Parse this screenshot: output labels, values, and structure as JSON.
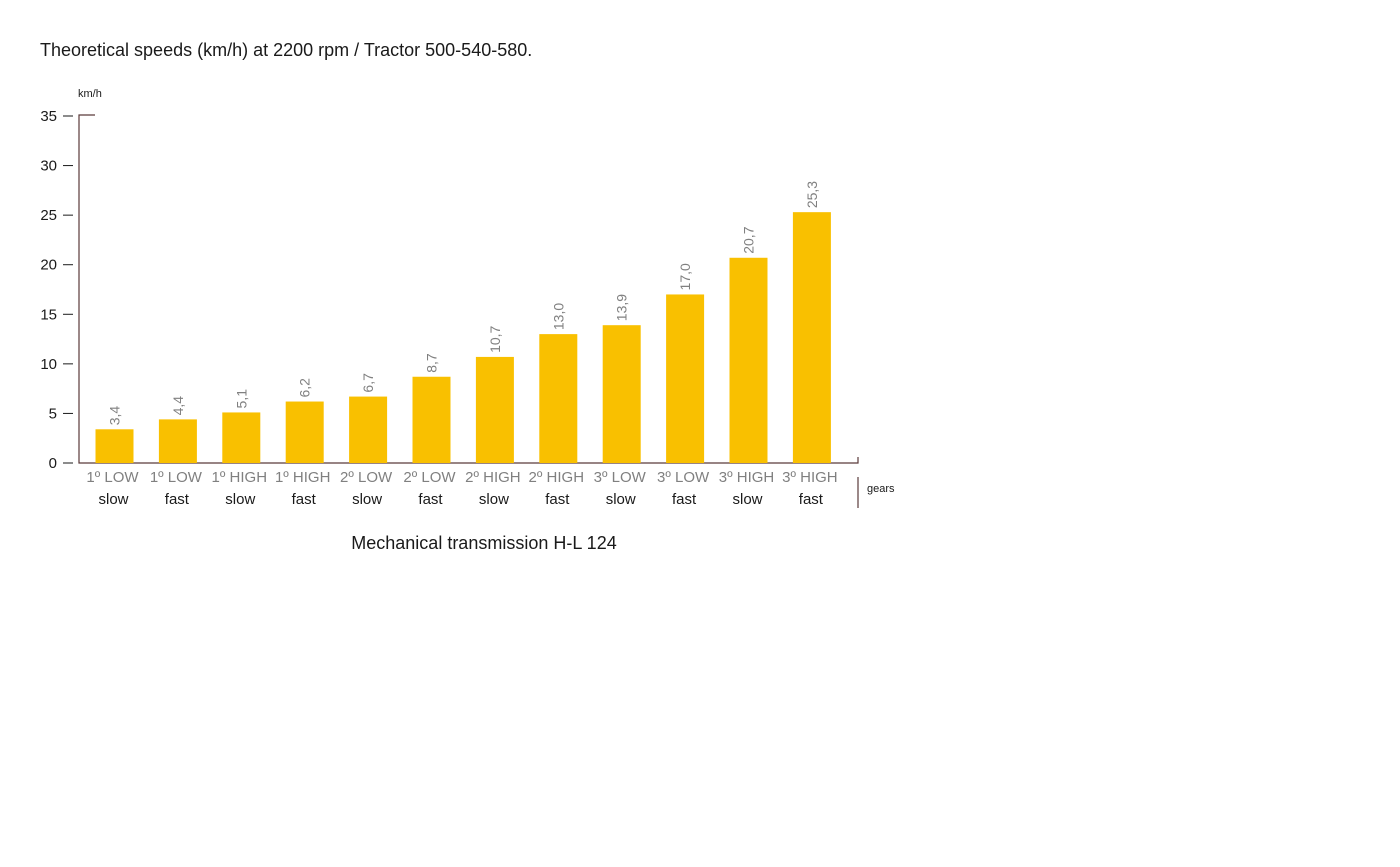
{
  "chart_data": {
    "type": "bar",
    "title": "Theoretical speeds (km/h) at 2200 rpm / Tractor 500-540-580.",
    "ylabel": "km/h",
    "xlabel": "Mechanical transmission H-L 124",
    "x_axis_note": "gears",
    "ylim": [
      0,
      35
    ],
    "yticks": [
      "0",
      "5",
      "10",
      "15",
      "20",
      "25",
      "30",
      "35"
    ],
    "categories": [
      {
        "gear": "1º LOW",
        "speed": "slow"
      },
      {
        "gear": "1º LOW",
        "speed": "fast"
      },
      {
        "gear": "1º HIGH",
        "speed": "slow"
      },
      {
        "gear": "1º HIGH",
        "speed": "fast"
      },
      {
        "gear": "2º LOW",
        "speed": "slow"
      },
      {
        "gear": "2º LOW",
        "speed": "fast"
      },
      {
        "gear": "2º HIGH",
        "speed": "slow"
      },
      {
        "gear": "2º HIGH",
        "speed": "fast"
      },
      {
        "gear": "3º LOW",
        "speed": "slow"
      },
      {
        "gear": "3º LOW",
        "speed": "fast"
      },
      {
        "gear": "3º HIGH",
        "speed": "slow"
      },
      {
        "gear": "3º HIGH",
        "speed": "fast"
      }
    ],
    "values": [
      3.4,
      4.4,
      5.1,
      6.2,
      6.7,
      8.7,
      10.7,
      13.0,
      13.9,
      17.0,
      20.7,
      25.3
    ],
    "value_labels": [
      "3,4",
      "4,4",
      "5,1",
      "6,2",
      "6,7",
      "8,7",
      "10,7",
      "13,0",
      "13,9",
      "17,0",
      "20,7",
      "25,3"
    ],
    "grid": false,
    "legend": "none",
    "colors": {
      "bar": "#f9c000",
      "axis": "#5a3a3a",
      "gear_label": "#808080",
      "speed_label": "#1a1a1a",
      "value_label": "#808080"
    }
  }
}
